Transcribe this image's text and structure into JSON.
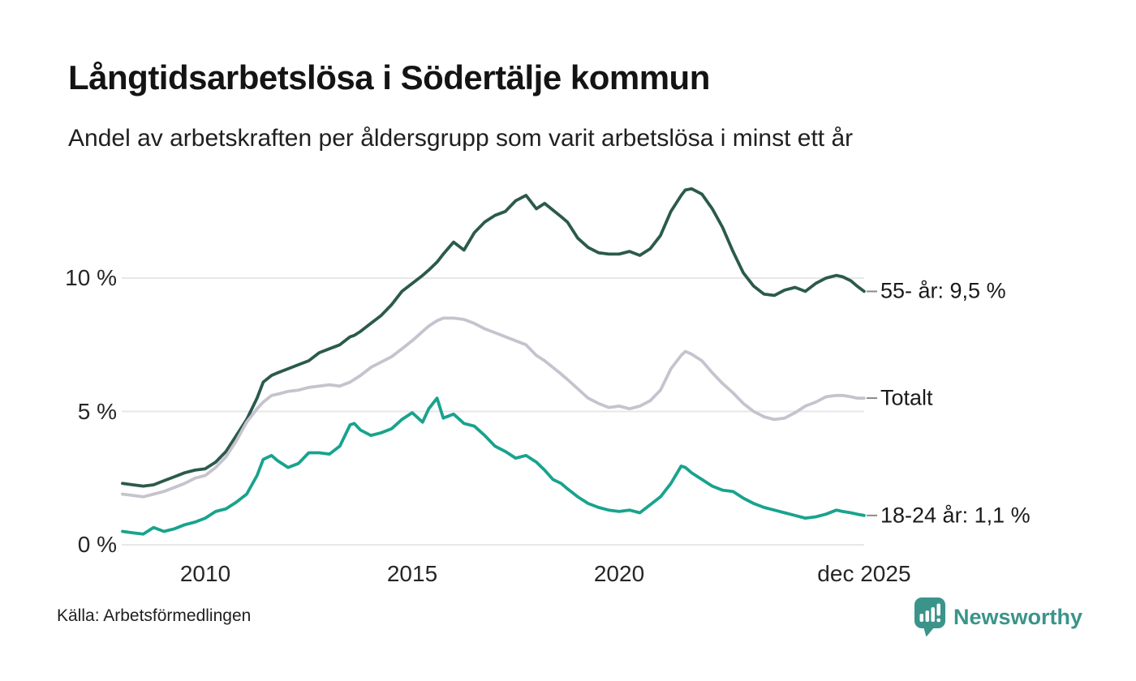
{
  "header": {
    "title": "Långtidsarbetslösa i Södertälje kommun",
    "subtitle": "Andel av arbetskraften per åldersgrupp som varit arbetslösa i minst ett år"
  },
  "footer": {
    "source": "Källa: Arbetsförmedlingen",
    "brand": "Newsworthy"
  },
  "colors": {
    "series_55": "#2b5a4b",
    "series_total": "#c6c3ce",
    "series_18_24": "#18a38e",
    "gridline": "#e7e6ea",
    "end_tick": "#8a8a8a",
    "text": "#1a1a1a",
    "brand_teal": "#3a948a"
  },
  "chart_data": {
    "type": "line",
    "title": "Långtidsarbetslösa i Södertälje kommun",
    "subtitle": "Andel av arbetskraften per åldersgrupp som varit arbetslösa i minst ett år",
    "xlabel": "",
    "ylabel": "",
    "unit": "%",
    "xlim": [
      2008,
      2025.92
    ],
    "ylim": [
      0,
      13.5
    ],
    "grid": "horizontal",
    "legend_position": "right-annotations",
    "xticks": [
      {
        "x": 2010,
        "label": "2010"
      },
      {
        "x": 2015,
        "label": "2015"
      },
      {
        "x": 2020,
        "label": "2020"
      },
      {
        "x": 2025.92,
        "label": "dec 2025"
      }
    ],
    "yticks": [
      {
        "v": 0,
        "label": "0 %"
      },
      {
        "v": 5,
        "label": "5 %"
      },
      {
        "v": 10,
        "label": "10 %"
      }
    ],
    "x": [
      2008.0,
      2008.25,
      2008.5,
      2008.75,
      2009.0,
      2009.25,
      2009.5,
      2009.75,
      2010.0,
      2010.25,
      2010.5,
      2010.75,
      2011.0,
      2011.25,
      2011.4,
      2011.6,
      2011.75,
      2012.0,
      2012.25,
      2012.5,
      2012.75,
      2013.0,
      2013.25,
      2013.5,
      2013.6,
      2013.75,
      2014.0,
      2014.25,
      2014.5,
      2014.75,
      2015.0,
      2015.25,
      2015.4,
      2015.6,
      2015.75,
      2016.0,
      2016.25,
      2016.5,
      2016.75,
      2017.0,
      2017.25,
      2017.5,
      2017.75,
      2018.0,
      2018.2,
      2018.4,
      2018.6,
      2018.75,
      2019.0,
      2019.25,
      2019.5,
      2019.75,
      2020.0,
      2020.25,
      2020.5,
      2020.75,
      2021.0,
      2021.25,
      2021.5,
      2021.6,
      2021.75,
      2022.0,
      2022.25,
      2022.5,
      2022.75,
      2023.0,
      2023.25,
      2023.5,
      2023.75,
      2024.0,
      2024.25,
      2024.5,
      2024.75,
      2025.0,
      2025.25,
      2025.4,
      2025.6,
      2025.75,
      2025.92
    ],
    "series": [
      {
        "key": "55-ar",
        "name": "55- år",
        "label": "55- år: 9,5 %",
        "end_value": 9.5,
        "color": "#2b5a4b",
        "values": [
          2.3,
          2.25,
          2.2,
          2.25,
          2.4,
          2.55,
          2.7,
          2.8,
          2.85,
          3.1,
          3.5,
          4.1,
          4.7,
          5.5,
          6.1,
          6.35,
          6.45,
          6.6,
          6.75,
          6.9,
          7.2,
          7.35,
          7.5,
          7.8,
          7.85,
          8.0,
          8.3,
          8.6,
          9.0,
          9.5,
          9.8,
          10.1,
          10.3,
          10.6,
          10.9,
          11.35,
          11.05,
          11.7,
          12.1,
          12.35,
          12.5,
          12.9,
          13.1,
          12.6,
          12.8,
          12.55,
          12.3,
          12.1,
          11.5,
          11.15,
          10.95,
          10.9,
          10.9,
          11.0,
          10.85,
          11.1,
          11.6,
          12.5,
          13.1,
          13.3,
          13.35,
          13.15,
          12.6,
          11.9,
          11.0,
          10.2,
          9.7,
          9.4,
          9.35,
          9.55,
          9.65,
          9.5,
          9.8,
          10.0,
          10.1,
          10.05,
          9.9,
          9.7,
          9.5
        ]
      },
      {
        "key": "totalt",
        "name": "Totalt",
        "label": "Totalt",
        "end_value": 5.5,
        "color": "#c6c3ce",
        "values": [
          1.9,
          1.85,
          1.8,
          1.9,
          2.0,
          2.15,
          2.3,
          2.5,
          2.6,
          2.9,
          3.3,
          3.9,
          4.6,
          5.1,
          5.35,
          5.6,
          5.65,
          5.75,
          5.8,
          5.9,
          5.95,
          6.0,
          5.95,
          6.1,
          6.2,
          6.35,
          6.65,
          6.85,
          7.05,
          7.35,
          7.65,
          8.0,
          8.2,
          8.4,
          8.5,
          8.5,
          8.45,
          8.3,
          8.1,
          7.95,
          7.8,
          7.65,
          7.5,
          7.1,
          6.9,
          6.65,
          6.4,
          6.2,
          5.85,
          5.5,
          5.3,
          5.15,
          5.2,
          5.1,
          5.2,
          5.4,
          5.8,
          6.6,
          7.1,
          7.25,
          7.15,
          6.9,
          6.45,
          6.05,
          5.7,
          5.3,
          5.0,
          4.8,
          4.7,
          4.75,
          4.95,
          5.2,
          5.35,
          5.55,
          5.6,
          5.6,
          5.55,
          5.5,
          5.5
        ]
      },
      {
        "key": "18-24-ar",
        "name": "18-24 år",
        "label": "18-24 år: 1,1 %",
        "end_value": 1.1,
        "color": "#18a38e",
        "values": [
          0.5,
          0.45,
          0.4,
          0.65,
          0.5,
          0.6,
          0.75,
          0.85,
          1.0,
          1.25,
          1.35,
          1.6,
          1.9,
          2.6,
          3.2,
          3.35,
          3.15,
          2.9,
          3.05,
          3.45,
          3.45,
          3.4,
          3.7,
          4.5,
          4.55,
          4.3,
          4.1,
          4.2,
          4.35,
          4.7,
          4.95,
          4.6,
          5.1,
          5.5,
          4.75,
          4.9,
          4.55,
          4.45,
          4.1,
          3.7,
          3.5,
          3.25,
          3.35,
          3.1,
          2.8,
          2.45,
          2.3,
          2.1,
          1.8,
          1.55,
          1.4,
          1.3,
          1.25,
          1.3,
          1.2,
          1.5,
          1.8,
          2.3,
          2.95,
          2.9,
          2.7,
          2.45,
          2.2,
          2.05,
          2.0,
          1.75,
          1.55,
          1.4,
          1.3,
          1.2,
          1.1,
          1.0,
          1.05,
          1.15,
          1.3,
          1.25,
          1.2,
          1.15,
          1.1
        ]
      }
    ]
  }
}
